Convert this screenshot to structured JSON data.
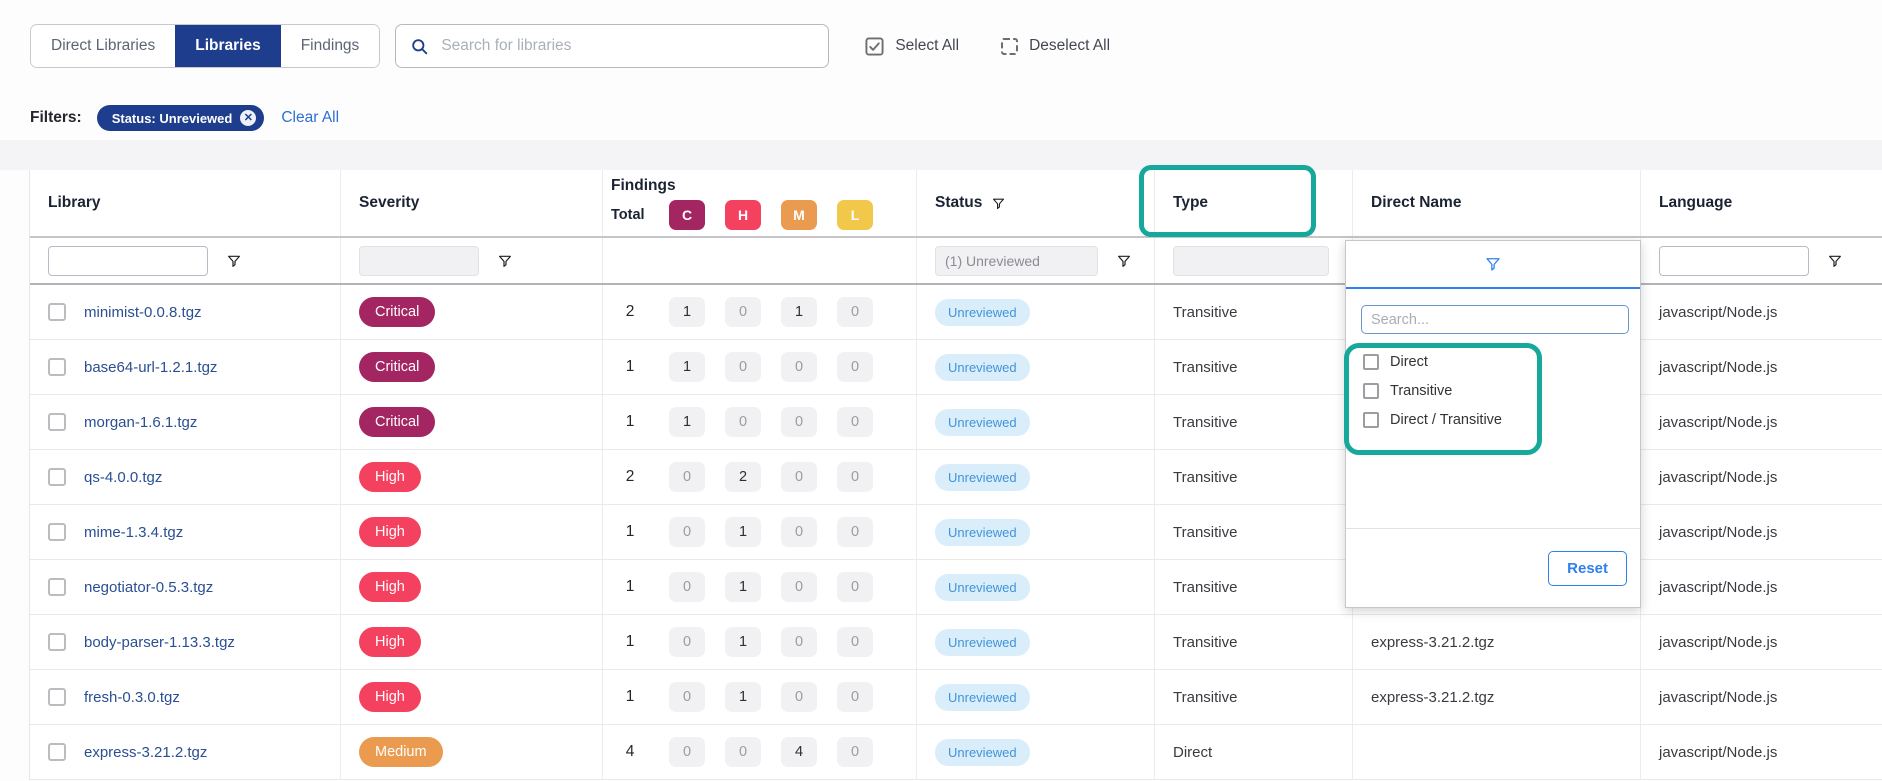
{
  "colors": {
    "navy": "#1e3d8c",
    "link-blue": "#2e6fd2",
    "accent-teal": "#16a89b",
    "critical": "#a32561",
    "high": "#f4415f",
    "medium": "#eb9b4f",
    "low": "#f2c84b",
    "badge-bg": "#daedfb",
    "badge-text": "#4094d8",
    "panel-blue": "#2f80ed"
  },
  "toolbar": {
    "tabs": [
      {
        "label": "Direct Libraries",
        "active": false
      },
      {
        "label": "Libraries",
        "active": true
      },
      {
        "label": "Findings",
        "active": false
      }
    ],
    "search_placeholder": "Search for libraries",
    "select_all": "Select All",
    "deselect_all": "Deselect All"
  },
  "filters_bar": {
    "label": "Filters:",
    "active_filter": "Status: Unreviewed",
    "remove_glyph": "✕",
    "clear_all": "Clear All"
  },
  "table": {
    "columns": {
      "library": "Library",
      "severity": "Severity",
      "status": "Status",
      "type": "Type",
      "direct_name": "Direct Name",
      "language": "Language"
    },
    "findings_header": {
      "title": "Findings",
      "total_label": "Total",
      "badges": [
        "C",
        "H",
        "M",
        "L"
      ]
    },
    "filter_row": {
      "status_value": "(1) Unreviewed"
    },
    "rows": [
      {
        "library": "minimist-0.0.8.tgz",
        "severity": "Critical",
        "total": 2,
        "c": 1,
        "h": 0,
        "m": 1,
        "l": 0,
        "status": "Unreviewed",
        "type": "Transitive",
        "direct_name": "",
        "language": "javascript/Node.js"
      },
      {
        "library": "base64-url-1.2.1.tgz",
        "severity": "Critical",
        "total": 1,
        "c": 1,
        "h": 0,
        "m": 0,
        "l": 0,
        "status": "Unreviewed",
        "type": "Transitive",
        "direct_name": "",
        "language": "javascript/Node.js"
      },
      {
        "library": "morgan-1.6.1.tgz",
        "severity": "Critical",
        "total": 1,
        "c": 1,
        "h": 0,
        "m": 0,
        "l": 0,
        "status": "Unreviewed",
        "type": "Transitive",
        "direct_name": "",
        "language": "javascript/Node.js"
      },
      {
        "library": "qs-4.0.0.tgz",
        "severity": "High",
        "total": 2,
        "c": 0,
        "h": 2,
        "m": 0,
        "l": 0,
        "status": "Unreviewed",
        "type": "Transitive",
        "direct_name": "",
        "language": "javascript/Node.js"
      },
      {
        "library": "mime-1.3.4.tgz",
        "severity": "High",
        "total": 1,
        "c": 0,
        "h": 1,
        "m": 0,
        "l": 0,
        "status": "Unreviewed",
        "type": "Transitive",
        "direct_name": "",
        "language": "javascript/Node.js"
      },
      {
        "library": "negotiator-0.5.3.tgz",
        "severity": "High",
        "total": 1,
        "c": 0,
        "h": 1,
        "m": 0,
        "l": 0,
        "status": "Unreviewed",
        "type": "Transitive",
        "direct_name": "",
        "language": "javascript/Node.js"
      },
      {
        "library": "body-parser-1.13.3.tgz",
        "severity": "High",
        "total": 1,
        "c": 0,
        "h": 1,
        "m": 0,
        "l": 0,
        "status": "Unreviewed",
        "type": "Transitive",
        "direct_name": "express-3.21.2.tgz",
        "language": "javascript/Node.js"
      },
      {
        "library": "fresh-0.3.0.tgz",
        "severity": "High",
        "total": 1,
        "c": 0,
        "h": 1,
        "m": 0,
        "l": 0,
        "status": "Unreviewed",
        "type": "Transitive",
        "direct_name": "express-3.21.2.tgz",
        "language": "javascript/Node.js"
      },
      {
        "library": "express-3.21.2.tgz",
        "severity": "Medium",
        "total": 4,
        "c": 0,
        "h": 0,
        "m": 4,
        "l": 0,
        "status": "Unreviewed",
        "type": "Direct",
        "direct_name": "",
        "language": "javascript/Node.js"
      }
    ]
  },
  "type_filter_dropdown": {
    "search_placeholder": "Search...",
    "options": [
      "Direct",
      "Transitive",
      "Direct / Transitive"
    ],
    "reset_label": "Reset"
  }
}
